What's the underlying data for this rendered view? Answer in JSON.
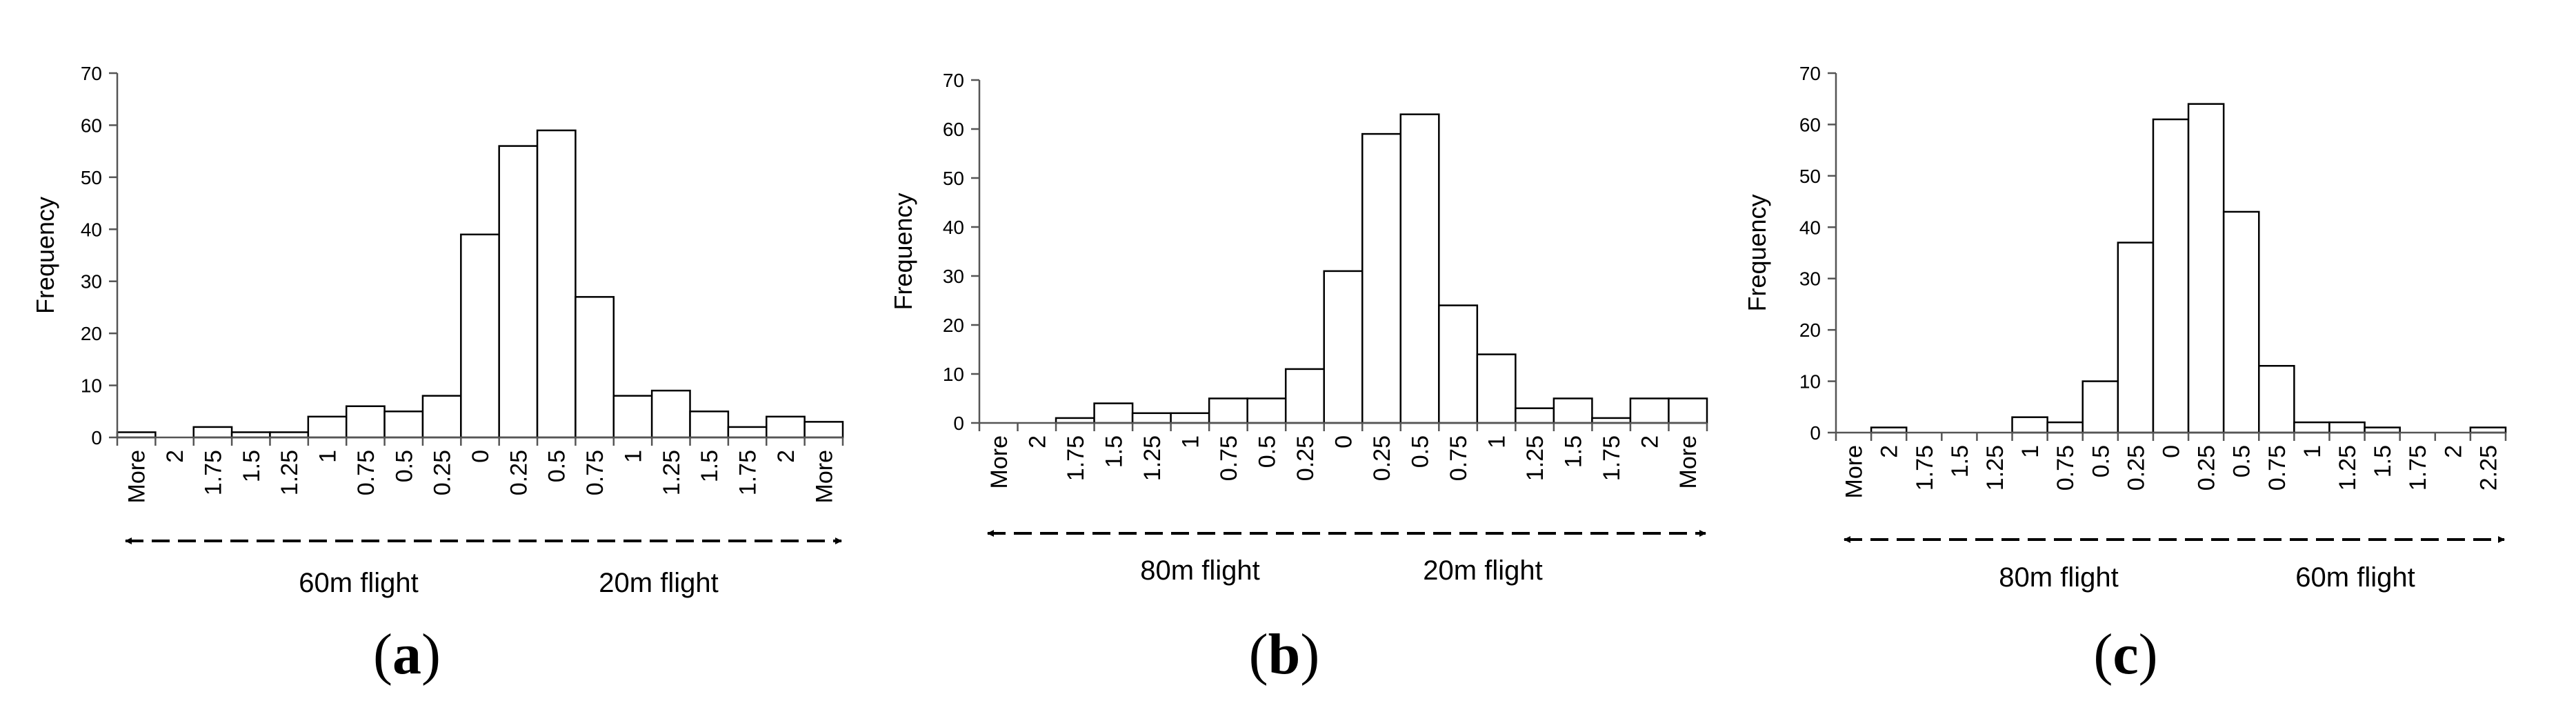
{
  "panels": [
    {
      "caption_open": "(",
      "caption_letter": "a",
      "caption_close": ")",
      "flight_left": "60m flight",
      "flight_right": "20m flight"
    },
    {
      "caption_open": "(",
      "caption_letter": "b",
      "caption_close": ")",
      "flight_left": "80m flight",
      "flight_right": "20m flight"
    },
    {
      "caption_open": "(",
      "caption_letter": "c",
      "caption_close": ")",
      "flight_left": "80m flight",
      "flight_right": "60m flight"
    }
  ],
  "chart_data": [
    {
      "type": "bar",
      "title": "",
      "xlabel": "",
      "ylabel": "Frequency",
      "ylim": [
        0,
        70
      ],
      "yticks": [
        0,
        10,
        20,
        30,
        40,
        50,
        60,
        70
      ],
      "categories": [
        "More",
        "2",
        "1.75",
        "1.5",
        "1.25",
        "1",
        "0.75",
        "0.5",
        "0.25",
        "0",
        "0.25",
        "0.5",
        "0.75",
        "1",
        "1.25",
        "1.5",
        "1.75",
        "2",
        "More"
      ],
      "values": [
        1,
        0,
        2,
        1,
        1,
        4,
        6,
        5,
        8,
        39,
        56,
        59,
        27,
        8,
        9,
        5,
        2,
        4,
        3
      ],
      "grid": false,
      "legend": "none"
    },
    {
      "type": "bar",
      "title": "",
      "xlabel": "",
      "ylabel": "Frequency",
      "ylim": [
        0,
        70
      ],
      "yticks": [
        0,
        10,
        20,
        30,
        40,
        50,
        60,
        70
      ],
      "categories": [
        "More",
        "2",
        "1.75",
        "1.5",
        "1.25",
        "1",
        "0.75",
        "0.5",
        "0.25",
        "0",
        "0.25",
        "0.5",
        "0.75",
        "1",
        "1.25",
        "1.5",
        "1.75",
        "2",
        "More"
      ],
      "values": [
        0,
        0,
        1,
        4,
        2,
        2,
        5,
        5,
        11,
        31,
        59,
        63,
        24,
        14,
        3,
        5,
        1,
        5,
        5
      ],
      "grid": false,
      "legend": "none"
    },
    {
      "type": "bar",
      "title": "",
      "xlabel": "",
      "ylabel": "Frequency",
      "ylim": [
        0,
        70
      ],
      "yticks": [
        0,
        10,
        20,
        30,
        40,
        50,
        60,
        70
      ],
      "categories": [
        "More",
        "2",
        "1.75",
        "1.5",
        "1.25",
        "1",
        "0.75",
        "0.5",
        "0.25",
        "0",
        "0.25",
        "0.5",
        "0.75",
        "1",
        "1.25",
        "1.5",
        "1.75",
        "2",
        "2.25"
      ],
      "values": [
        0,
        1,
        0,
        0,
        0,
        3,
        2,
        10,
        37,
        61,
        64,
        43,
        13,
        2,
        2,
        1,
        0,
        0,
        1
      ],
      "grid": false,
      "legend": "none"
    }
  ]
}
